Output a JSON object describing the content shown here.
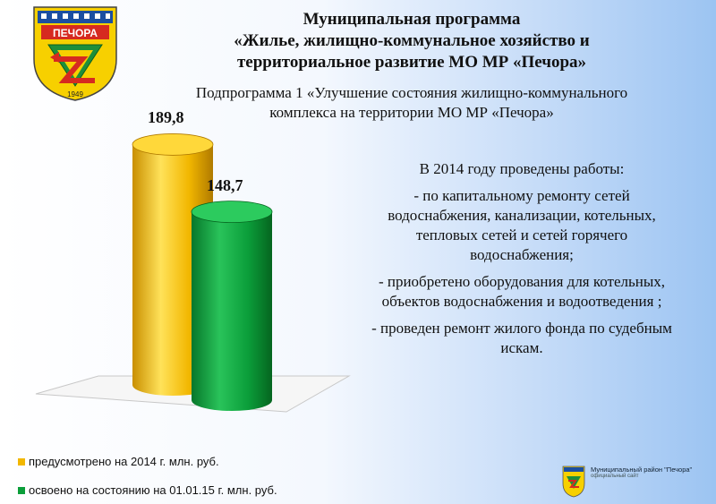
{
  "header": {
    "title_line1": "Муниципальная программа",
    "title_line2": "«Жилье, жилищно-коммунальное хозяйство и",
    "title_line3": "территориальное развитие МО МР «Печора»",
    "subtitle_line1": "Подпрограмма 1 «Улучшение состояния жилищно-коммунального",
    "subtitle_line2": "комплекса на территории МО МР «Печора»"
  },
  "emblem": {
    "text": "ПЕЧОРА",
    "year": "1949",
    "icon": "city-coat-of-arms-icon"
  },
  "chart_data": {
    "type": "bar",
    "series": [
      {
        "name": "предусмотрено на 2014 г. млн. руб.",
        "value": 189.8,
        "label": "189,8",
        "color": "#f2b700"
      },
      {
        "name": "освоено на состоянию на 01.01.15 г. млн. руб.",
        "value": 148.7,
        "label": "148,7",
        "color": "#0b9e3a"
      }
    ],
    "legend_position": "bottom-left"
  },
  "description": {
    "heading": "В 2014 году проведены работы:",
    "items": [
      "- по капитальному ремонту сетей водоснабжения, канализации, котельных, тепловых сетей и сетей горячего водоснабжения;",
      "- приобретено оборудования для котельных, объектов водоснабжения и водоотведения ;",
      "- проведен ремонт жилого фонда по судебным искам."
    ]
  },
  "footer": {
    "org_name": "Муниципальный район \"Печора\"",
    "org_sub": "официальный сайт"
  }
}
